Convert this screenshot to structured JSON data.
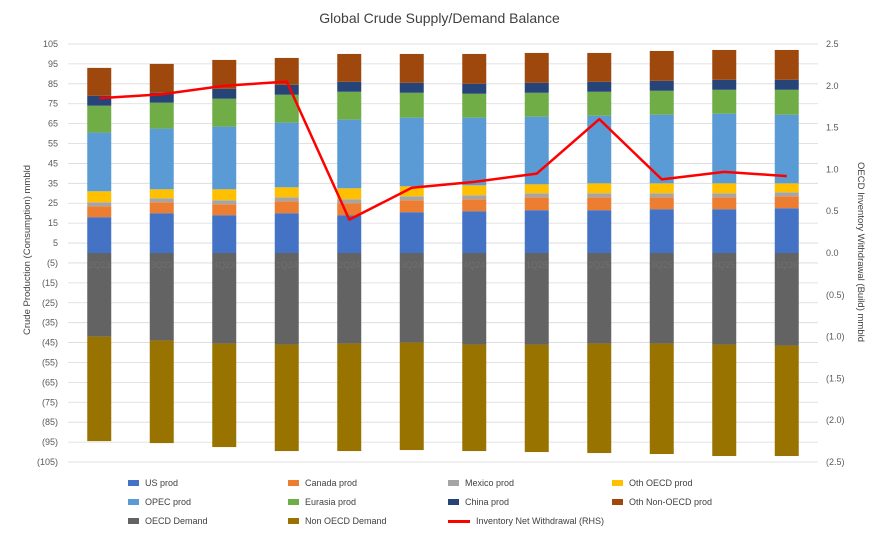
{
  "chart_data": {
    "type": "bar",
    "title": "Global Crude Supply/Demand Balance",
    "ylabel": "Crude Production (Consumption) mmbld",
    "y2label": "OECD Inventory Withdrawal (Build) mmbld",
    "ylim": [
      -105,
      105
    ],
    "y2lim": [
      -2.5,
      2.5
    ],
    "y_ticks": [
      "105",
      "95",
      "85",
      "75",
      "65",
      "55",
      "45",
      "35",
      "25",
      "15",
      "5",
      "(5)",
      "(15)",
      "(25)",
      "(35)",
      "(45)",
      "(55)",
      "(65)",
      "(75)",
      "(85)",
      "(95)",
      "(105)"
    ],
    "y2_ticks": [
      "2.5",
      "2.0",
      "1.5",
      "1.0",
      "0.5",
      "0.0",
      "(0.5)",
      "(1.0)",
      "(1.5)",
      "(2.0)",
      "(2.5)"
    ],
    "categories": [
      "",
      "",
      "",
      "",
      "",
      "",
      "",
      "",
      "",
      "",
      "",
      ""
    ],
    "category_labels_visible": [
      "2Q23",
      "3Q23",
      "4Q23",
      "1Q24",
      "2Q24",
      "3Q24",
      "4Q24",
      "1Q25",
      "2Q25",
      "3Q25",
      "4Q25",
      "1Q26"
    ],
    "series": [
      {
        "name": "US prod",
        "color": "#4472C4",
        "stack": "supply",
        "values": [
          18,
          20,
          19,
          20,
          19,
          20.5,
          21,
          21.5,
          21.5,
          22,
          22,
          22.5
        ]
      },
      {
        "name": "Canada prod",
        "color": "#ED7D31",
        "stack": "supply",
        "values": [
          5.5,
          5.5,
          5.5,
          6,
          6,
          6,
          6,
          6.5,
          6.5,
          6,
          6,
          6
        ]
      },
      {
        "name": "Mexico prod",
        "color": "#A5A5A5",
        "stack": "supply",
        "values": [
          2,
          2,
          2,
          2,
          2,
          2,
          2,
          2,
          2,
          2,
          2,
          2
        ]
      },
      {
        "name": "Oth OECD prod",
        "color": "#FFC000",
        "stack": "supply",
        "values": [
          5.5,
          4.5,
          5.5,
          5,
          5.5,
          5,
          5,
          4.5,
          5,
          5,
          5,
          4.5
        ]
      },
      {
        "name": "OPEC prod",
        "color": "#5B9BD5",
        "stack": "supply",
        "values": [
          29.5,
          30.5,
          31.5,
          32.5,
          34.5,
          34.5,
          34,
          34,
          34,
          34.5,
          35,
          34.5
        ]
      },
      {
        "name": "Eurasia prod",
        "color": "#70AD47",
        "stack": "supply",
        "values": [
          13.5,
          13,
          14,
          14,
          14,
          12.5,
          12,
          12,
          12,
          12,
          12,
          12.5
        ]
      },
      {
        "name": "China prod",
        "color": "#264478",
        "stack": "supply",
        "values": [
          5,
          5,
          5,
          5,
          5,
          5,
          5,
          5,
          5,
          5,
          5,
          5
        ]
      },
      {
        "name": "Oth Non-OECD prod",
        "color": "#9E480E",
        "stack": "supply",
        "values": [
          14,
          14.5,
          14.5,
          13.5,
          14,
          14.5,
          15,
          15,
          14.5,
          15,
          15,
          15
        ]
      },
      {
        "name": "OECD Demand",
        "color": "#636363",
        "stack": "demand",
        "values": [
          -42,
          -44,
          -45.5,
          -46,
          -45.5,
          -45,
          -46,
          -46,
          -45.5,
          -45.5,
          -46,
          -46.5
        ]
      },
      {
        "name": "Non OECD Demand",
        "color": "#997300",
        "stack": "demand",
        "values": [
          -52.5,
          -51.5,
          -52,
          -53.5,
          -54,
          -54,
          -53.5,
          -54,
          -55,
          -55.5,
          -56,
          -55.5
        ]
      }
    ],
    "line_series": {
      "name": "Inventory Net Withdrawal (RHS)",
      "color": "#FF0000",
      "axis": "right",
      "values": [
        1.85,
        1.9,
        2.0,
        2.05,
        0.4,
        0.78,
        0.85,
        0.95,
        1.6,
        0.88,
        0.97,
        0.92
      ]
    },
    "grid": true,
    "legend_position": "bottom"
  }
}
